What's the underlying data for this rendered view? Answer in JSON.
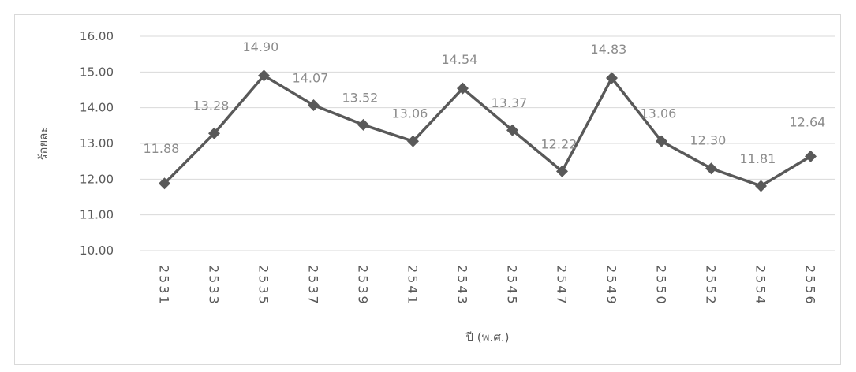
{
  "chart_data": {
    "type": "line",
    "title": "",
    "xlabel": "ปี (พ.ศ.)",
    "ylabel": "ร้อยละ",
    "ylim": [
      10,
      16
    ],
    "y_ticks": [
      "10.00",
      "11.00",
      "12.00",
      "13.00",
      "14.00",
      "15.00",
      "16.00"
    ],
    "categories": [
      "2531",
      "2533",
      "2535",
      "2537",
      "2539",
      "2541",
      "2543",
      "2545",
      "2547",
      "2549",
      "2550",
      "2552",
      "2554",
      "2556"
    ],
    "series": [
      {
        "values": [
          11.88,
          13.28,
          14.9,
          14.07,
          13.52,
          13.06,
          14.54,
          13.37,
          12.22,
          14.83,
          13.06,
          12.3,
          11.81,
          12.64
        ],
        "labels": [
          "11.88",
          "13.28",
          "14.90",
          "14.07",
          "13.52",
          "13.06",
          "14.54",
          "13.37",
          "12.22",
          "14.83",
          "13.06",
          "12.30",
          "11.81",
          "12.64"
        ],
        "color": "#595959",
        "marker": "diamond"
      }
    ],
    "grid": true,
    "legend": "none",
    "colors": {
      "line": "#595959",
      "grid": "#d9d9d9",
      "label": "#8c8c8c"
    }
  }
}
